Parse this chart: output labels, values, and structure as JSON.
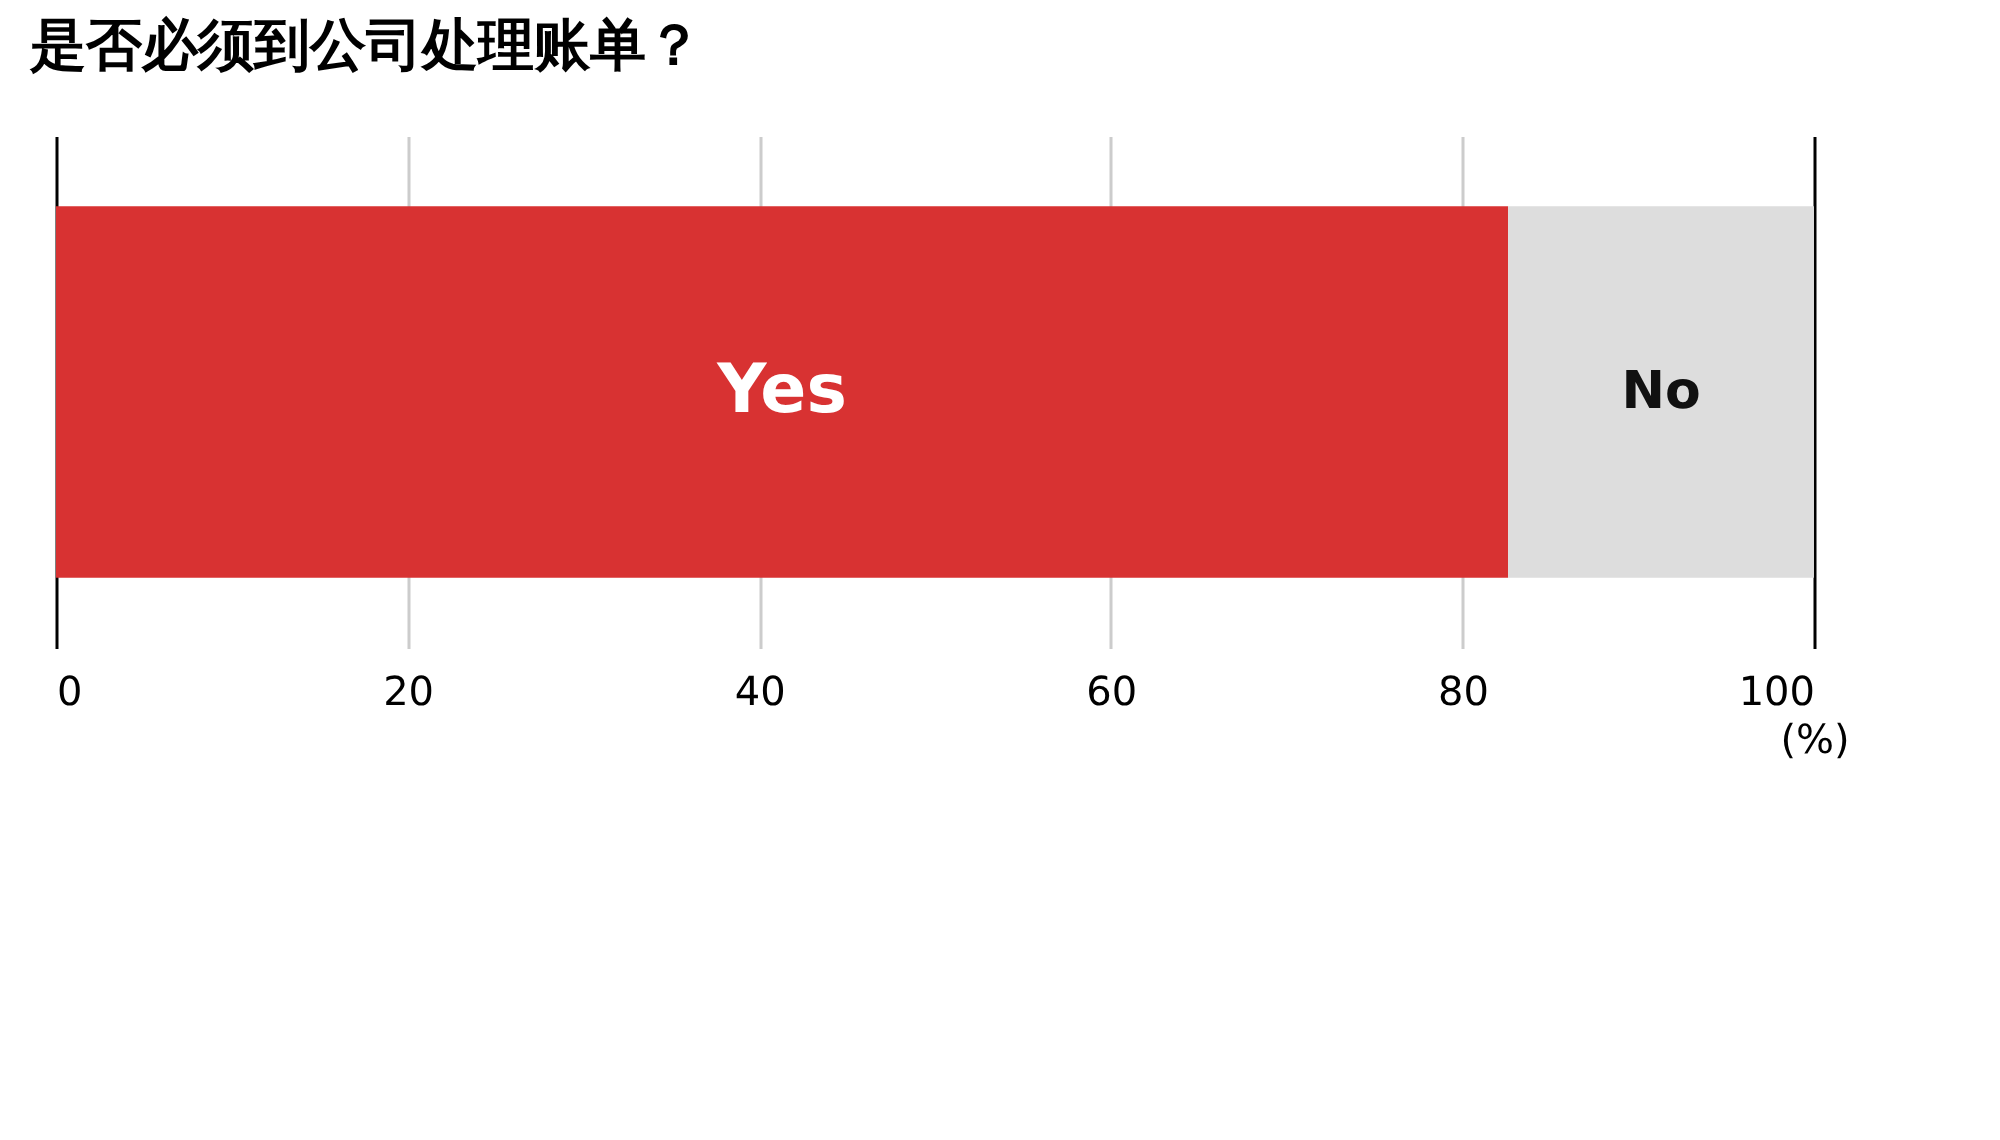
{
  "chart_data": {
    "type": "bar",
    "title": "是否必须到公司处理账单？",
    "orientation": "horizontal",
    "stacked": true,
    "categories": [
      null
    ],
    "series": [
      {
        "name": "Yes",
        "color": "#d83232",
        "values": [
          82.6
        ]
      },
      {
        "name": "No",
        "color": "#dddddd",
        "values": [
          17.4
        ]
      }
    ],
    "xlim": [
      0,
      100
    ],
    "xticks": [
      0,
      20,
      40,
      60,
      80,
      100
    ],
    "xlabel": "(%)",
    "grid": "x",
    "legend": false
  }
}
